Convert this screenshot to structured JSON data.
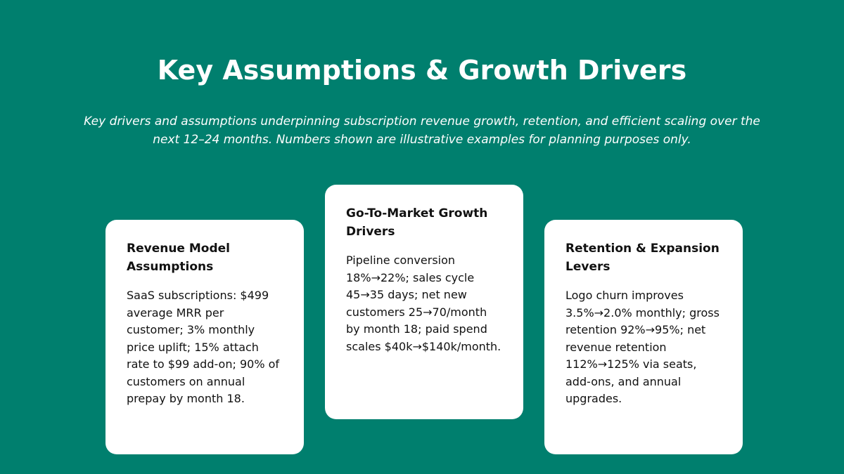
{
  "header": {
    "title": "Key Assumptions & Growth Drivers",
    "subtitle": "Key drivers and assumptions underpinning subscription revenue growth, retention, and efficient scaling over the next 12–24 months. Numbers shown are illustrative examples for planning purposes only."
  },
  "cards": [
    {
      "title": "Revenue Model Assumptions",
      "body": "SaaS subscriptions: $499 average MRR per customer; 3% monthly price uplift; 15% attach rate to $99 add-on; 90% of customers on annual prepay by month 18."
    },
    {
      "title": "Go-To-Market Growth Drivers",
      "body": "Pipeline conversion 18%→22%; sales cycle 45→35 days; net new customers 25→70/month by month 18; paid spend scales $40k→$140k/month."
    },
    {
      "title": "Retention & Expansion Levers",
      "body": "Logo churn improves 3.5%→2.0% monthly; gross retention 92%→95%; net revenue retention 112%→125% via seats, add-ons, and annual upgrades."
    }
  ]
}
